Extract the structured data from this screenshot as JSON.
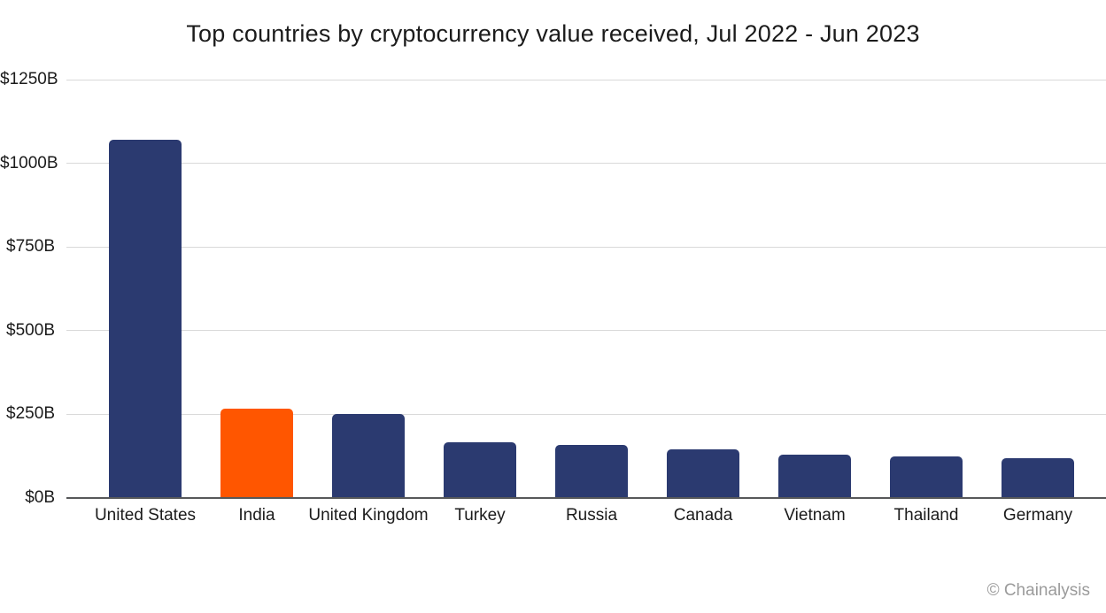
{
  "chart_data": {
    "type": "bar",
    "title": "Top countries by cryptocurrency value received, Jul 2022 - Jun 2023",
    "categories": [
      "United States",
      "India",
      "United Kingdom",
      "Turkey",
      "Russia",
      "Canada",
      "Vietnam",
      "Thailand",
      "Germany"
    ],
    "values": [
      1070,
      268,
      252,
      166,
      158,
      145,
      129,
      124,
      118
    ],
    "unit": "$B",
    "bar_color": "#2B3A70",
    "highlight": {
      "category": "India",
      "color": "#FF5600"
    },
    "y_ticks": [
      {
        "value": 0,
        "label": "$0B"
      },
      {
        "value": 250,
        "label": "$250B"
      },
      {
        "value": 500,
        "label": "$500B"
      },
      {
        "value": 750,
        "label": "$750B"
      },
      {
        "value": 1000,
        "label": "$1000B"
      },
      {
        "value": 1250,
        "label": "$1250B"
      }
    ],
    "ylim": [
      0,
      1250
    ],
    "grid": true,
    "legend": "none",
    "xlabel": "",
    "ylabel": ""
  },
  "footer": {
    "credit": "© Chainalysis"
  }
}
